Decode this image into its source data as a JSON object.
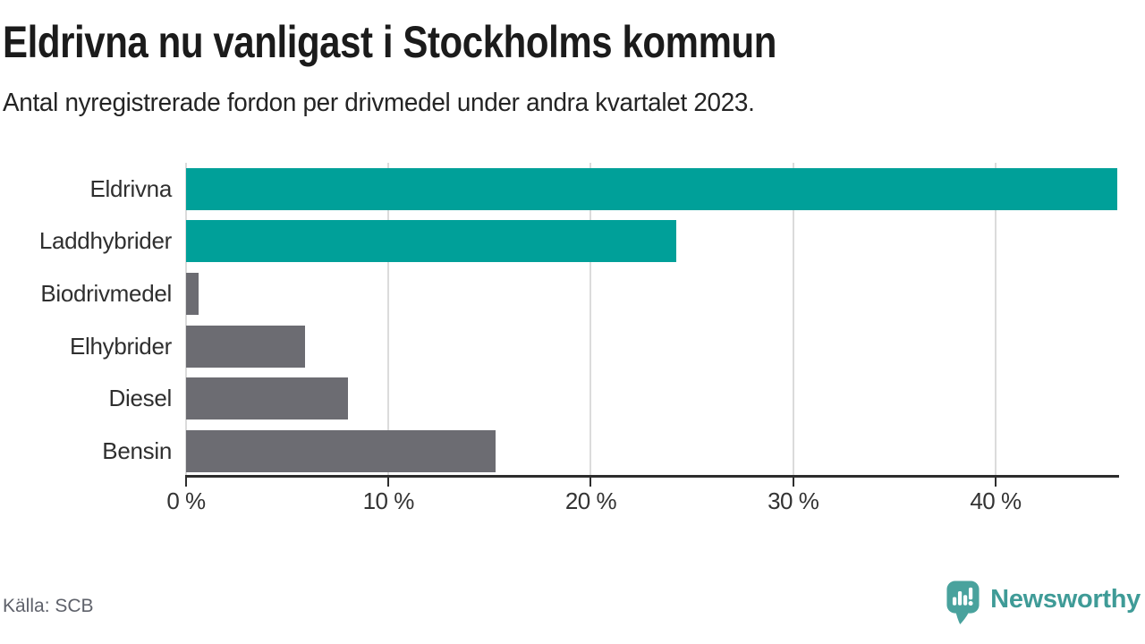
{
  "header": {
    "title": "Eldrivna nu vanligast i Stockholms kommun",
    "subtitle": "Antal nyregistrerade fordon per drivmedel under andra kvartalet 2023."
  },
  "chart_data": {
    "type": "bar",
    "orientation": "horizontal",
    "title": "Eldrivna nu vanligast i Stockholms kommun",
    "subtitle": "Antal nyregistrerade fordon per drivmedel under andra kvartalet 2023.",
    "categories": [
      "Eldrivna",
      "Laddhybrider",
      "Biodrivmedel",
      "Elhybrider",
      "Diesel",
      "Bensin"
    ],
    "values": [
      46,
      24.2,
      0.6,
      5.9,
      8,
      15.3
    ],
    "unit": "%",
    "xlim": [
      0,
      46.1
    ],
    "x_ticks": [
      {
        "value": 0,
        "label": "0 %"
      },
      {
        "value": 10,
        "label": "10 %"
      },
      {
        "value": 20,
        "label": "20 %"
      },
      {
        "value": 30,
        "label": "30 %"
      },
      {
        "value": 40,
        "label": "40 %"
      }
    ],
    "grid": true,
    "legend": false,
    "bar_colors": [
      "#00a099",
      "#00a099",
      "#6c6c72",
      "#6c6c72",
      "#6c6c72",
      "#6c6c72"
    ],
    "colors": {
      "highlight": "#00a099",
      "default": "#6c6c72",
      "gridline": "#dbdbdb",
      "axis": "#2d2d2d"
    }
  },
  "footer": {
    "source_label": "Källa: SCB",
    "brand_name": "Newsworthy",
    "brand_color": "#3f9b97",
    "logo_icon": "newsworthy-bubble-chart-icon"
  }
}
